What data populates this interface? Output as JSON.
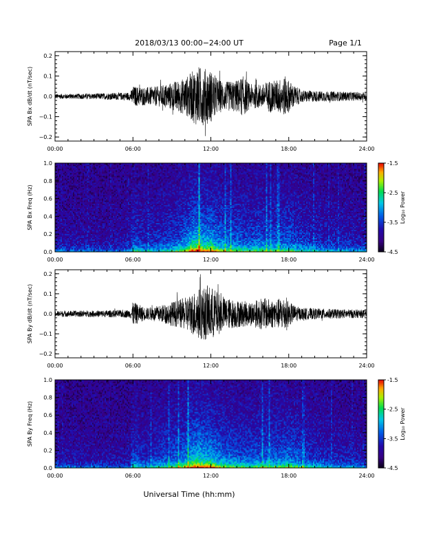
{
  "header": {
    "title": "2018/03/13  00:00−24:00 UT",
    "page": "Page 1/1"
  },
  "footer": {
    "xlabel": "Universal Time (hh:mm)"
  },
  "chart_data": [
    {
      "type": "line",
      "ylabel": "SPA Bx dB/dt (nT/sec)",
      "xlim": [
        0,
        24
      ],
      "ylim": [
        -0.22,
        0.22
      ],
      "xticks": [
        "00:00",
        "06:00",
        "12:00",
        "18:00",
        "24:00"
      ],
      "yticks": [
        "0.2",
        "0.1",
        "0.0",
        "−0.1",
        "−0.2"
      ],
      "ytick_values": [
        0.2,
        0.1,
        0.0,
        -0.1,
        -0.2
      ],
      "amplitude_envelope": {
        "x": [
          0,
          3,
          5.8,
          6,
          7,
          8,
          9,
          10,
          10.5,
          11,
          11.5,
          12,
          12.5,
          13,
          14,
          14.5,
          15,
          16,
          16.5,
          17,
          17.8,
          18,
          18.5,
          19,
          21,
          24
        ],
        "amp": [
          0.012,
          0.014,
          0.02,
          0.05,
          0.045,
          0.05,
          0.07,
          0.09,
          0.12,
          0.15,
          0.14,
          0.13,
          0.09,
          0.07,
          0.08,
          0.1,
          0.06,
          0.06,
          0.08,
          0.08,
          0.1,
          0.08,
          0.05,
          0.03,
          0.025,
          0.02
        ]
      }
    },
    {
      "type": "heatmap",
      "ylabel": "SPA Bx Freq (Hz)",
      "xlim": [
        0,
        24
      ],
      "ylim": [
        0,
        1.0
      ],
      "xticks": [
        "00:00",
        "06:00",
        "12:00",
        "18:00",
        "24:00"
      ],
      "yticks": [
        "1.0",
        "0.8",
        "0.6",
        "0.4",
        "0.2",
        "0.0"
      ],
      "ytick_values": [
        1.0,
        0.8,
        0.6,
        0.4,
        0.2,
        0.0
      ],
      "colorbar": {
        "label": "Log₁₀ Power",
        "ticks": [
          "-1.5",
          "-2.5",
          "-3.5",
          "-4.5"
        ],
        "range": [
          -4.5,
          -1.5
        ]
      },
      "activity": {
        "x": [
          0,
          5.8,
          6,
          7,
          8,
          9,
          10,
          10.5,
          11,
          11.5,
          12,
          12.5,
          13,
          14,
          15,
          16,
          17,
          18,
          19,
          21,
          24
        ],
        "level": [
          0.15,
          0.15,
          0.45,
          0.3,
          0.35,
          0.45,
          0.6,
          0.85,
          0.95,
          0.8,
          0.85,
          0.7,
          0.6,
          0.55,
          0.5,
          0.55,
          0.5,
          0.55,
          0.4,
          0.3,
          0.2
        ]
      }
    },
    {
      "type": "line",
      "ylabel": "SPA By dB/dt (nT/sec)",
      "xlim": [
        0,
        24
      ],
      "ylim": [
        -0.22,
        0.22
      ],
      "xticks": [
        "00:00",
        "06:00",
        "12:00",
        "18:00",
        "24:00"
      ],
      "yticks": [
        "0.2",
        "0.1",
        "0.0",
        "−0.1",
        "−0.2"
      ],
      "ytick_values": [
        0.2,
        0.1,
        0.0,
        -0.1,
        -0.2
      ],
      "amplitude_envelope": {
        "x": [
          0,
          3,
          5.8,
          6,
          7,
          8,
          9,
          10,
          10.5,
          11,
          11.5,
          12,
          12.5,
          13,
          14,
          15,
          16,
          17,
          17.8,
          18,
          18.5,
          19,
          21,
          24
        ],
        "amp": [
          0.015,
          0.016,
          0.02,
          0.06,
          0.03,
          0.04,
          0.06,
          0.08,
          0.1,
          0.13,
          0.13,
          0.14,
          0.11,
          0.08,
          0.07,
          0.06,
          0.08,
          0.07,
          0.09,
          0.06,
          0.04,
          0.03,
          0.025,
          0.02
        ]
      }
    },
    {
      "type": "heatmap",
      "ylabel": "SPA By Freq (Hz)",
      "xlim": [
        0,
        24
      ],
      "ylim": [
        0,
        1.0
      ],
      "xticks": [
        "00:00",
        "06:00",
        "12:00",
        "18:00",
        "24:00"
      ],
      "yticks": [
        "1.0",
        "0.8",
        "0.6",
        "0.4",
        "0.2",
        "0.0"
      ],
      "ytick_values": [
        1.0,
        0.8,
        0.6,
        0.4,
        0.2,
        0.0
      ],
      "colorbar": {
        "label": "Log₁₀ Power",
        "ticks": [
          "-1.5",
          "-2.5",
          "-3.5",
          "-4.5"
        ],
        "range": [
          -4.5,
          -1.5
        ]
      },
      "activity": {
        "x": [
          0,
          5.8,
          6,
          7,
          8,
          9,
          10,
          10.5,
          11,
          11.5,
          12,
          12.5,
          13,
          14,
          15,
          16,
          17,
          18,
          19,
          21,
          24
        ],
        "level": [
          0.15,
          0.15,
          0.45,
          0.3,
          0.4,
          0.5,
          0.65,
          0.85,
          0.95,
          0.85,
          0.85,
          0.7,
          0.6,
          0.55,
          0.5,
          0.55,
          0.55,
          0.6,
          0.45,
          0.3,
          0.2
        ]
      }
    }
  ]
}
